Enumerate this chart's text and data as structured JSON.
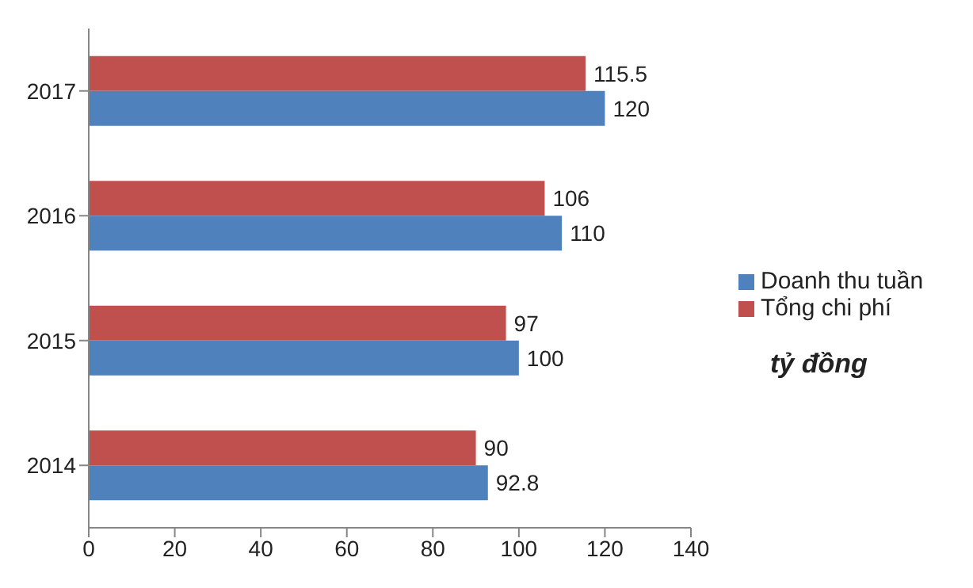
{
  "chart_data": {
    "type": "bar",
    "orientation": "horizontal",
    "categories": [
      "2017",
      "2016",
      "2015",
      "2014"
    ],
    "series": [
      {
        "name": "Tổng chi phí",
        "color": "#c0504d",
        "values": [
          115.5,
          106,
          97,
          90
        ]
      },
      {
        "name": "Doanh thu tuần",
        "color": "#4f81bd",
        "values": [
          120,
          110,
          100,
          92.8
        ]
      }
    ],
    "xlim": [
      0,
      140
    ],
    "xticks": [
      0,
      20,
      40,
      60,
      80,
      100,
      120,
      140
    ],
    "grid": false,
    "legend": "right",
    "data_labels": true,
    "annotations": [
      "tỷ đồng"
    ]
  }
}
